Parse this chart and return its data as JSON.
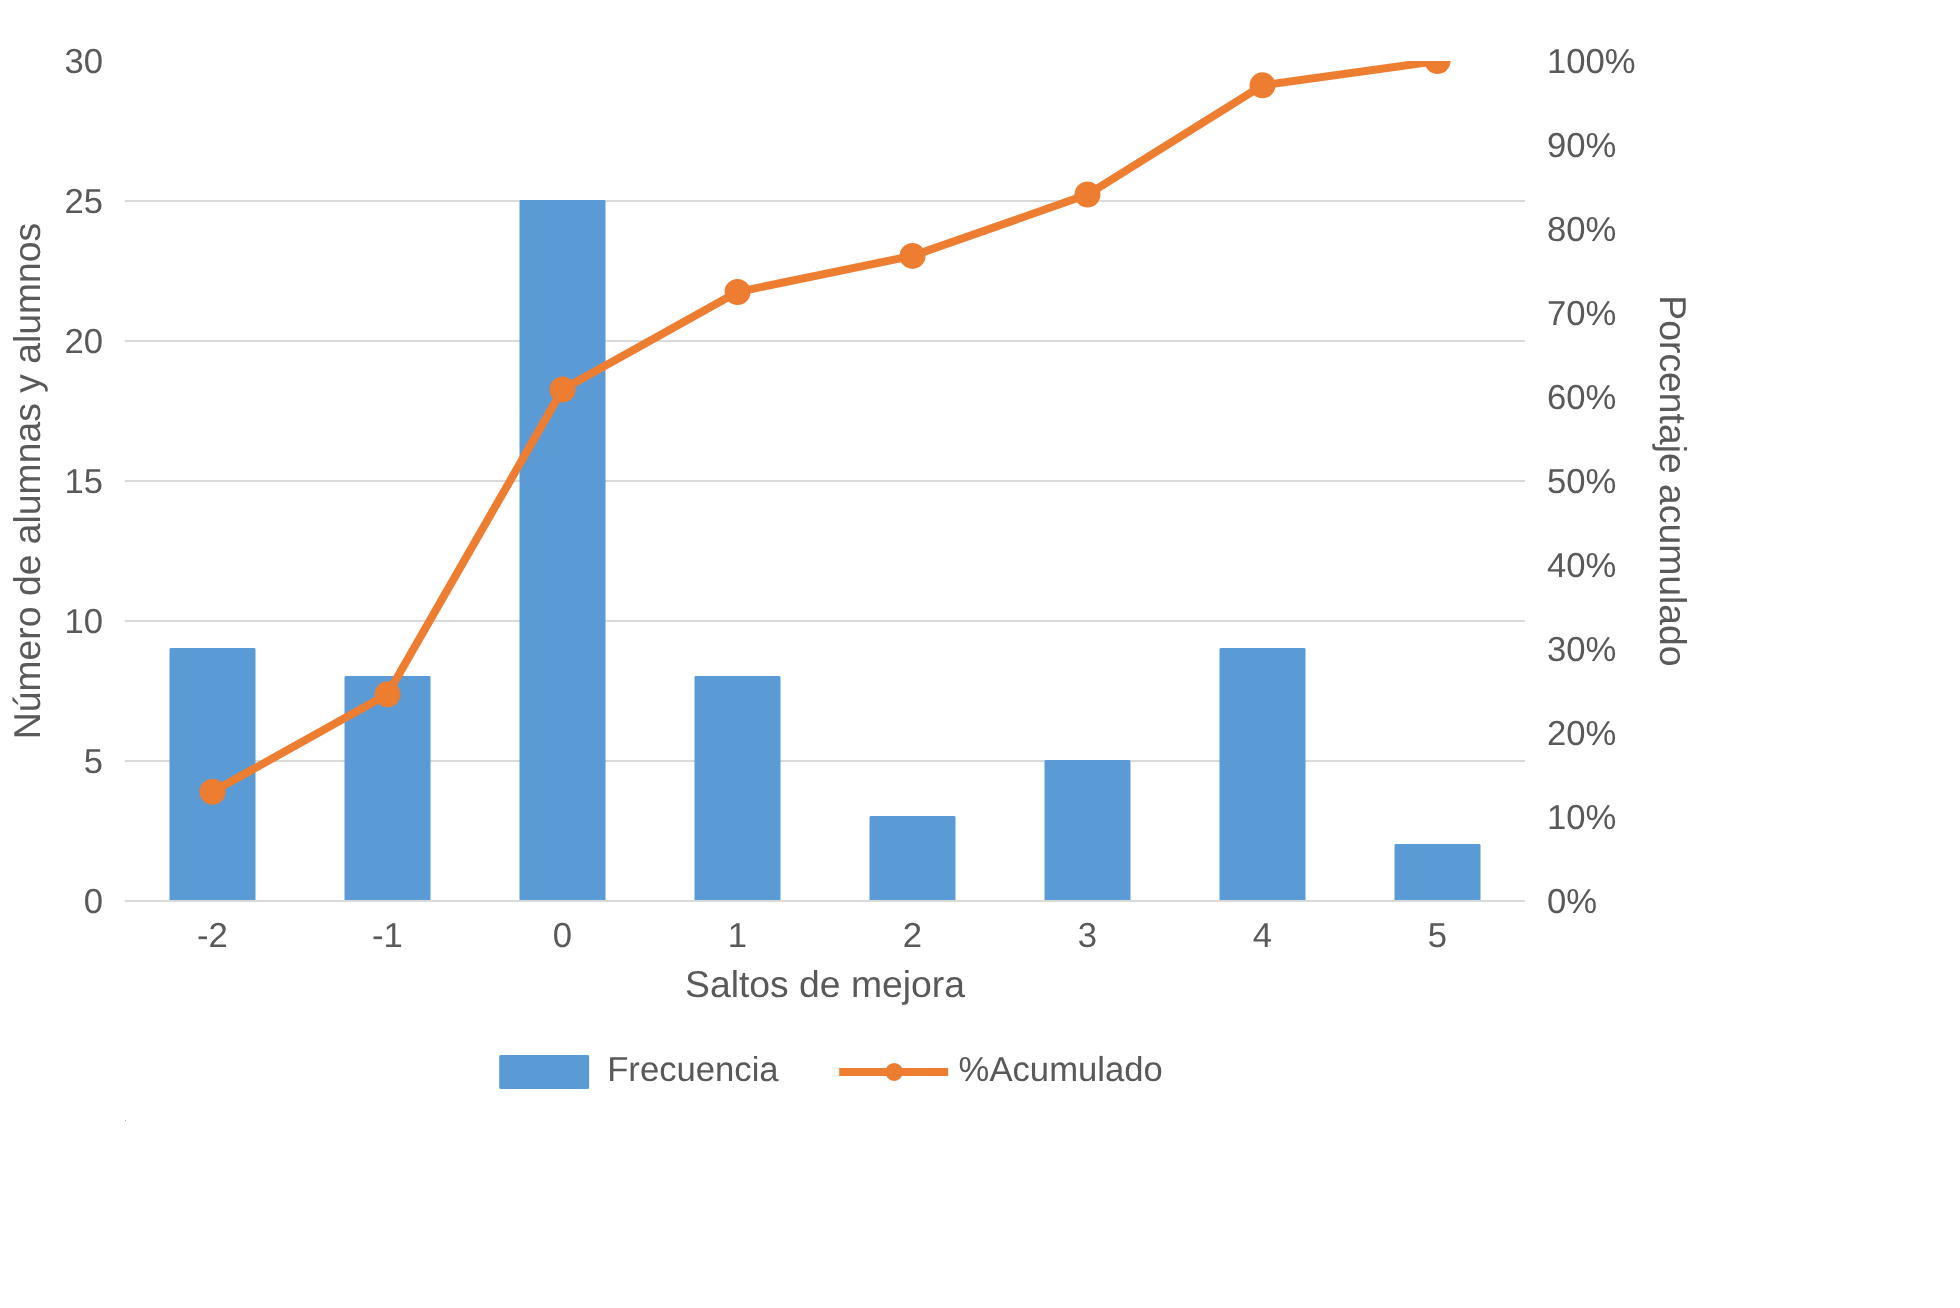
{
  "chart_data": {
    "type": "bar",
    "xlabel": "Saltos de mejora",
    "ylabel": "Número de alumnas y alumnos",
    "y2label": "Porcentaje acumulado",
    "categories": [
      "-2",
      "-1",
      "0",
      "1",
      "2",
      "3",
      "4",
      "5"
    ],
    "series": [
      {
        "name": "Frecuencia",
        "color": "#5b9bd5",
        "values": [
          9,
          8,
          25,
          8,
          3,
          5,
          9,
          2
        ]
      },
      {
        "name": "%Acumulado",
        "type": "line",
        "axis": "y2",
        "color": "#ed7d31",
        "marker": "circle",
        "values": [
          13,
          24.6,
          60.9,
          72.5,
          76.8,
          84.1,
          97.1,
          100
        ]
      }
    ],
    "ylim": [
      0,
      30
    ],
    "yticks": [
      0,
      5,
      10,
      15,
      20,
      25,
      30
    ],
    "y2lim": [
      0,
      100
    ],
    "y2ticks": [
      {
        "value": 0,
        "label": "0%"
      },
      {
        "value": 10,
        "label": "10%"
      },
      {
        "value": 20,
        "label": "20%"
      },
      {
        "value": 30,
        "label": "30%"
      },
      {
        "value": 40,
        "label": "40%"
      },
      {
        "value": 50,
        "label": "50%"
      },
      {
        "value": 60,
        "label": "60%"
      },
      {
        "value": 70,
        "label": "70%"
      },
      {
        "value": 80,
        "label": "80%"
      },
      {
        "value": 90,
        "label": "90%"
      },
      {
        "value": 100,
        "label": "100%"
      }
    ],
    "grid": "y",
    "legend": "bottom"
  }
}
